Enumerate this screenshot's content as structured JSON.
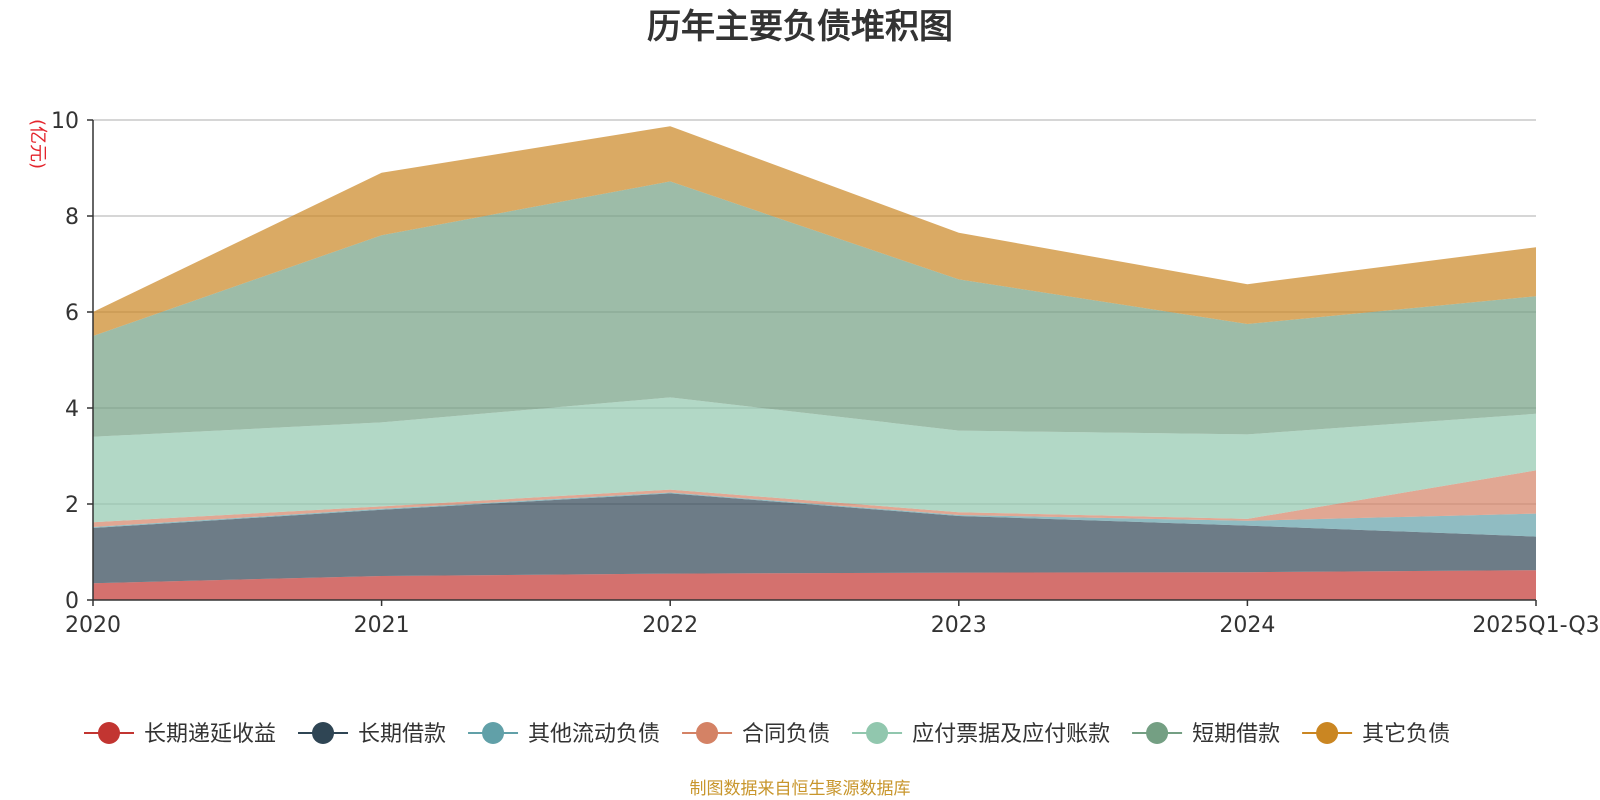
{
  "chart_data": {
    "type": "area",
    "stacked": true,
    "title": "历年主要负债堆积图",
    "unit_label": "(亿元)",
    "categories": [
      "2020",
      "2021",
      "2022",
      "2023",
      "2024",
      "2025Q1-Q3"
    ],
    "ylim": [
      0,
      10
    ],
    "yticks": [
      0,
      2,
      4,
      6,
      8,
      10
    ],
    "grid": true,
    "legend_position": "bottom",
    "series": [
      {
        "name": "长期递延收益",
        "color": "#c23531",
        "values": [
          0.35,
          0.5,
          0.55,
          0.57,
          0.58,
          0.62
        ]
      },
      {
        "name": "长期借款",
        "color": "#2f4554",
        "values": [
          1.15,
          1.38,
          1.67,
          1.18,
          0.97,
          0.7
        ]
      },
      {
        "name": "其他流动负债",
        "color": "#61a0a8",
        "values": [
          0.02,
          0.02,
          0.02,
          0.02,
          0.1,
          0.48
        ]
      },
      {
        "name": "合同负债",
        "color": "#d48265",
        "values": [
          0.1,
          0.05,
          0.06,
          0.06,
          0.04,
          0.9
        ]
      },
      {
        "name": "应付票据及应付账款",
        "color": "#91c7ae",
        "values": [
          1.78,
          1.75,
          1.92,
          1.7,
          1.76,
          1.18
        ]
      },
      {
        "name": "短期借款",
        "color": "#749f83",
        "values": [
          2.1,
          3.9,
          4.5,
          3.15,
          2.3,
          2.45
        ]
      },
      {
        "name": "其它负债",
        "color": "#ca8622",
        "values": [
          0.5,
          1.3,
          1.15,
          0.97,
          0.83,
          1.02
        ]
      }
    ],
    "source": "制图数据来自恒生聚源数据库"
  }
}
